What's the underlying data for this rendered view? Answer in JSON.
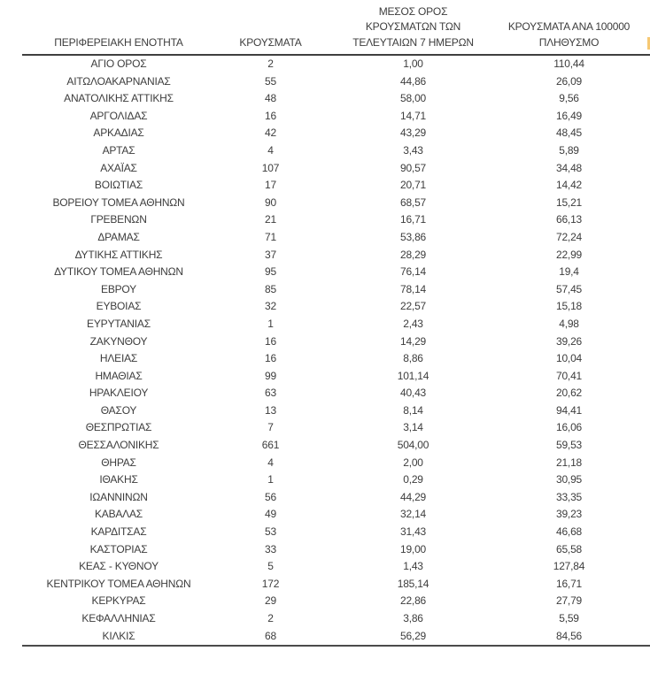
{
  "table": {
    "headers": {
      "region": "ΠΕΡΙΦΕΡΕΙΑΚΗ ΕΝΟΤΗΤΑ",
      "cases": "ΚΡΟΥΣΜΑΤΑ",
      "avg7": "ΜΕΣΟΣ ΟΡΟΣ\nΚΡΟΥΣΜΑΤΩΝ ΤΩΝ\nΤΕΛΕΥΤΑΙΩΝ 7 ΗΜΕΡΩΝ",
      "per100k": "ΚΡΟΥΣΜΑΤΑ ΑΝΑ 100000\nΠΛΗΘΥΣΜΟ"
    },
    "rows": [
      {
        "region": "ΑΓΙΟ ΟΡΟΣ",
        "cases": "2",
        "avg7": "1,00",
        "per100k": "110,44"
      },
      {
        "region": "ΑΙΤΩΛΟΑΚΑΡΝΑΝΙΑΣ",
        "cases": "55",
        "avg7": "44,86",
        "per100k": "26,09"
      },
      {
        "region": "ΑΝΑΤΟΛΙΚΗΣ ΑΤΤΙΚΗΣ",
        "cases": "48",
        "avg7": "58,00",
        "per100k": "9,56"
      },
      {
        "region": "ΑΡΓΟΛΙΔΑΣ",
        "cases": "16",
        "avg7": "14,71",
        "per100k": "16,49"
      },
      {
        "region": "ΑΡΚΑΔΙΑΣ",
        "cases": "42",
        "avg7": "43,29",
        "per100k": "48,45"
      },
      {
        "region": "ΑΡΤΑΣ",
        "cases": "4",
        "avg7": "3,43",
        "per100k": "5,89"
      },
      {
        "region": "ΑΧΑΪΑΣ",
        "cases": "107",
        "avg7": "90,57",
        "per100k": "34,48"
      },
      {
        "region": "ΒΟΙΩΤΙΑΣ",
        "cases": "17",
        "avg7": "20,71",
        "per100k": "14,42"
      },
      {
        "region": "ΒΟΡΕΙΟΥ ΤΟΜΕΑ ΑΘΗΝΩΝ",
        "cases": "90",
        "avg7": "68,57",
        "per100k": "15,21"
      },
      {
        "region": "ΓΡΕΒΕΝΩΝ",
        "cases": "21",
        "avg7": "16,71",
        "per100k": "66,13"
      },
      {
        "region": "ΔΡΑΜΑΣ",
        "cases": "71",
        "avg7": "53,86",
        "per100k": "72,24"
      },
      {
        "region": "ΔΥΤΙΚΗΣ ΑΤΤΙΚΗΣ",
        "cases": "37",
        "avg7": "28,29",
        "per100k": "22,99"
      },
      {
        "region": "ΔΥΤΙΚΟΥ ΤΟΜΕΑ ΑΘΗΝΩΝ",
        "cases": "95",
        "avg7": "76,14",
        "per100k": "19,4"
      },
      {
        "region": "ΕΒΡΟΥ",
        "cases": "85",
        "avg7": "78,14",
        "per100k": "57,45"
      },
      {
        "region": "ΕΥΒΟΙΑΣ",
        "cases": "32",
        "avg7": "22,57",
        "per100k": "15,18"
      },
      {
        "region": "ΕΥΡΥΤΑΝΙΑΣ",
        "cases": "1",
        "avg7": "2,43",
        "per100k": "4,98"
      },
      {
        "region": "ΖΑΚΥΝΘΟΥ",
        "cases": "16",
        "avg7": "14,29",
        "per100k": "39,26"
      },
      {
        "region": "ΗΛΕΙΑΣ",
        "cases": "16",
        "avg7": "8,86",
        "per100k": "10,04"
      },
      {
        "region": "ΗΜΑΘΙΑΣ",
        "cases": "99",
        "avg7": "101,14",
        "per100k": "70,41"
      },
      {
        "region": "ΗΡΑΚΛΕΙΟΥ",
        "cases": "63",
        "avg7": "40,43",
        "per100k": "20,62"
      },
      {
        "region": "ΘΑΣΟΥ",
        "cases": "13",
        "avg7": "8,14",
        "per100k": "94,41"
      },
      {
        "region": "ΘΕΣΠΡΩΤΙΑΣ",
        "cases": "7",
        "avg7": "3,14",
        "per100k": "16,06"
      },
      {
        "region": "ΘΕΣΣΑΛΟΝΙΚΗΣ",
        "cases": "661",
        "avg7": "504,00",
        "per100k": "59,53"
      },
      {
        "region": "ΘΗΡΑΣ",
        "cases": "4",
        "avg7": "2,00",
        "per100k": "21,18"
      },
      {
        "region": "ΙΘΑΚΗΣ",
        "cases": "1",
        "avg7": "0,29",
        "per100k": "30,95"
      },
      {
        "region": "ΙΩΑΝΝΙΝΩΝ",
        "cases": "56",
        "avg7": "44,29",
        "per100k": "33,35"
      },
      {
        "region": "ΚΑΒΑΛΑΣ",
        "cases": "49",
        "avg7": "32,14",
        "per100k": "39,23"
      },
      {
        "region": "ΚΑΡΔΙΤΣΑΣ",
        "cases": "53",
        "avg7": "31,43",
        "per100k": "46,68"
      },
      {
        "region": "ΚΑΣΤΟΡΙΑΣ",
        "cases": "33",
        "avg7": "19,00",
        "per100k": "65,58"
      },
      {
        "region": "ΚΕΑΣ - ΚΥΘΝΟΥ",
        "cases": "5",
        "avg7": "1,43",
        "per100k": "127,84"
      },
      {
        "region": "ΚΕΝΤΡΙΚΟΥ ΤΟΜΕΑ ΑΘΗΝΩΝ",
        "cases": "172",
        "avg7": "185,14",
        "per100k": "16,71"
      },
      {
        "region": "ΚΕΡΚΥΡΑΣ",
        "cases": "29",
        "avg7": "22,86",
        "per100k": "27,79"
      },
      {
        "region": "ΚΕΦΑΛΛΗΝΙΑΣ",
        "cases": "2",
        "avg7": "3,86",
        "per100k": "5,59"
      },
      {
        "region": "ΚΙΛΚΙΣ",
        "cases": "68",
        "avg7": "56,29",
        "per100k": "84,56"
      }
    ]
  },
  "colors": {
    "text": "#3d3d3d",
    "rule": "#3f3f3f",
    "edge_highlight": "#f6c873"
  }
}
